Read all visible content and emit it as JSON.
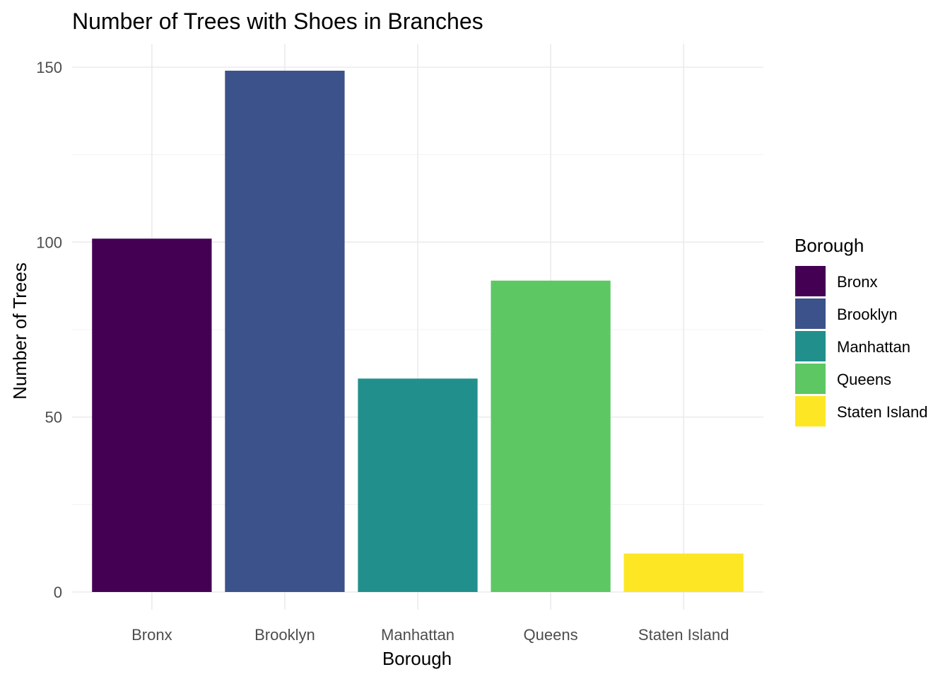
{
  "chart_data": {
    "type": "bar",
    "title": "Number of Trees with Shoes in Branches",
    "xlabel": "Borough",
    "ylabel": "Number of Trees",
    "categories": [
      "Bronx",
      "Brooklyn",
      "Manhattan",
      "Queens",
      "Staten Island"
    ],
    "values": [
      101,
      149,
      61,
      89,
      11
    ],
    "colors": [
      "#440154",
      "#3B528B",
      "#21908C",
      "#5DC863",
      "#FDE725"
    ],
    "ylim": [
      0,
      156
    ],
    "yticks": [
      0,
      50,
      100,
      150
    ],
    "grid": true,
    "legend": {
      "title": "Borough",
      "position": "right",
      "entries": [
        "Bronx",
        "Brooklyn",
        "Manhattan",
        "Queens",
        "Staten Island"
      ]
    }
  }
}
